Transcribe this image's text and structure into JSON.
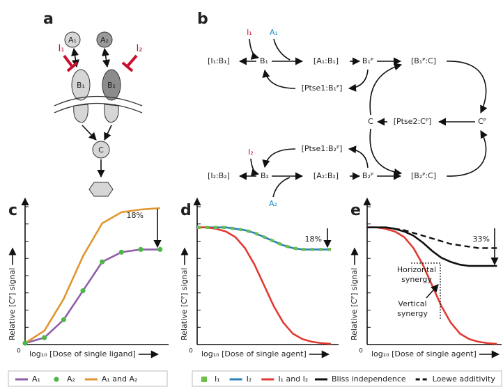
{
  "diagram_a": {
    "label": "a",
    "A1": "A₁",
    "A2": "A₂",
    "I1": "I₁",
    "I2": "I₂",
    "B1": "B₁",
    "B2": "B₂",
    "C": "C"
  },
  "diagram_b": {
    "label": "b",
    "I1": "I₁",
    "A1": "A₁",
    "I1B1": "[I₁:B₁]",
    "B1": "B₁",
    "A1B1": "[A₁:B₁]",
    "B1P": "B₁ᴾ",
    "B1PC": "[B₁ᴾ:C]",
    "Ptse1B1P": "[Ptse1:B₁ᴾ]",
    "C": "C",
    "Ptse2CP": "[Ptse2:Cᴾ]",
    "CP": "Cᴾ",
    "Ptse1B2P": "[Ptse1:B₂ᴾ]",
    "I2": "I₂",
    "I2B2": "[I₂:B₂]",
    "B2": "B₂",
    "A2B2": "[A₂:B₂]",
    "B2P": "B₂ᴾ",
    "B2PC": "[B₂ᴾ:C]",
    "A2": "A₂"
  },
  "chart_data": [
    {
      "type": "line",
      "panel": "c",
      "y_label": "Relative [Cᴾ] signal",
      "x_label": "log₁₀ [Dose of single ligand]",
      "origin_label": "0",
      "x": [
        0,
        1,
        2,
        3,
        4,
        5,
        6,
        7
      ],
      "xlim": [
        0,
        7.3
      ],
      "ylim": [
        0,
        1
      ],
      "yticks": [
        0,
        0.125,
        0.25,
        0.375,
        0.5,
        0.625,
        0.75,
        0.875,
        1
      ],
      "series": [
        {
          "name": "A₁",
          "color": "#8e5ea8",
          "style": "line",
          "values": [
            0.01,
            0.05,
            0.18,
            0.39,
            0.6,
            0.67,
            0.69,
            0.69
          ]
        },
        {
          "name": "A₂",
          "color": "#4db848",
          "style": "dots",
          "values": [
            0.01,
            0.05,
            0.18,
            0.39,
            0.6,
            0.67,
            0.69,
            0.69
          ]
        },
        {
          "name": "A₁ and A₂",
          "color": "#e0962e",
          "style": "line",
          "values": [
            0.01,
            0.1,
            0.33,
            0.64,
            0.88,
            0.96,
            0.98,
            0.99
          ]
        }
      ],
      "annotations": [
        [
          "18%"
        ]
      ]
    },
    {
      "type": "line",
      "panel": "d",
      "y_label": "Relative [Cᴾ] signal",
      "x_label": "log₁₀ [Dose of single agent]",
      "origin_label": "0",
      "x": [
        0,
        1,
        2,
        3,
        4,
        5,
        6,
        7,
        8,
        9,
        10,
        11,
        12,
        13,
        14
      ],
      "xlim": [
        0,
        14.5
      ],
      "ylim": [
        0,
        1
      ],
      "yticks": [
        0,
        0.125,
        0.25,
        0.375,
        0.5,
        0.625,
        0.75,
        0.875,
        1
      ],
      "series": [
        {
          "name": "I₁",
          "color": "#6dbf4b",
          "style": "squares",
          "values": [
            0.85,
            0.85,
            0.85,
            0.85,
            0.84,
            0.83,
            0.81,
            0.78,
            0.75,
            0.72,
            0.7,
            0.69,
            0.69,
            0.69,
            0.69
          ]
        },
        {
          "name": "I₂",
          "color": "#2c7fb8",
          "style": "line",
          "values": [
            0.85,
            0.85,
            0.85,
            0.85,
            0.84,
            0.83,
            0.81,
            0.78,
            0.75,
            0.72,
            0.7,
            0.69,
            0.69,
            0.69,
            0.69
          ]
        },
        {
          "name": "I₁ and I₂",
          "color": "#e03a33",
          "style": "line",
          "values": [
            0.85,
            0.85,
            0.84,
            0.82,
            0.78,
            0.7,
            0.58,
            0.43,
            0.28,
            0.16,
            0.08,
            0.04,
            0.02,
            0.01,
            0.005
          ]
        }
      ],
      "annotations": [
        [
          "18%"
        ]
      ]
    },
    {
      "type": "line",
      "panel": "e",
      "y_label": "Relative [Cᴾ] signal",
      "x_label": "log₁₀ [Dose of single agent]",
      "origin_label": "0",
      "x": [
        0,
        1,
        2,
        3,
        4,
        5,
        6,
        7,
        8,
        9,
        10,
        11,
        12,
        13,
        14
      ],
      "xlim": [
        0,
        14.2
      ],
      "ylim": [
        0,
        1
      ],
      "yticks": [
        0,
        0.125,
        0.25,
        0.375,
        0.5,
        0.625,
        0.75,
        0.875,
        1
      ],
      "series": [
        {
          "color": "#e03a33",
          "style": "line",
          "values": [
            0.85,
            0.85,
            0.84,
            0.82,
            0.78,
            0.7,
            0.58,
            0.43,
            0.28,
            0.16,
            0.08,
            0.04,
            0.02,
            0.01,
            0.005
          ]
        },
        {
          "name": "Bliss independence",
          "color": "#111111",
          "style": "line",
          "values": [
            0.85,
            0.85,
            0.85,
            0.84,
            0.82,
            0.79,
            0.74,
            0.68,
            0.63,
            0.6,
            0.58,
            0.57,
            0.57,
            0.57,
            0.57
          ]
        },
        {
          "name": "Loewe additivity",
          "color": "#111111",
          "style": "dashed",
          "values": [
            0.85,
            0.85,
            0.85,
            0.84,
            0.83,
            0.81,
            0.79,
            0.77,
            0.75,
            0.73,
            0.72,
            0.71,
            0.7,
            0.7,
            0.7
          ]
        }
      ],
      "annotations": [
        [
          "33%"
        ],
        [
          "Horizontal",
          "synergy"
        ],
        [
          "Vertical",
          "synergy"
        ]
      ]
    }
  ]
}
